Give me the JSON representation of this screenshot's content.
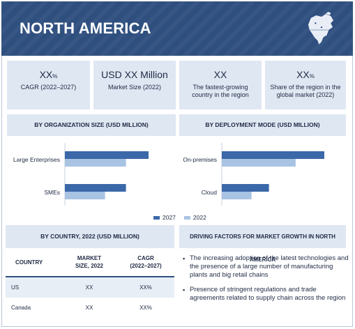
{
  "header": {
    "title": "NORTH AMERICA",
    "map_icon": "north-america-map-icon"
  },
  "kpis": [
    {
      "value": "XX",
      "unit": "%",
      "label": "CAGR (2022–2027)"
    },
    {
      "value": "USD XX Million",
      "unit": "",
      "label": "Market Size (2022)"
    },
    {
      "value": "XX",
      "unit": "",
      "label": "The fastest-growing country in the region"
    },
    {
      "value": "XX",
      "unit": "%",
      "label": "Share of the region in the global market (2022)"
    }
  ],
  "sections": {
    "org_size": "BY ORGANIZATION SIZE (USD MILLION)",
    "deployment": "BY DEPLOYMENT MODE (USD MILLION)",
    "country": "BY COUNTRY, 2022 (USD MILLION)",
    "drivers": "DRIVING FACTORS FOR MARKET GROWTH IN NORTH AMERICA"
  },
  "colors": {
    "series_2027": "#3b68a8",
    "series_2022": "#a9c3e3",
    "header_bg": "#2f4f7f",
    "panel_bg": "#dfe7f2"
  },
  "chart_data": [
    {
      "type": "bar",
      "orientation": "horizontal",
      "title": "BY ORGANIZATION SIZE (USD MILLION)",
      "categories": [
        "Large Enterprises",
        "SMEs"
      ],
      "series": [
        {
          "name": "2027",
          "values": [
            100,
            73
          ]
        },
        {
          "name": "2022",
          "values": [
            73,
            48
          ]
        }
      ],
      "xlim": [
        0,
        100
      ],
      "values_note": "relative bar lengths, no axis scale printed",
      "grid": false
    },
    {
      "type": "bar",
      "orientation": "horizontal",
      "title": "BY DEPLOYMENT MODE (USD MILLION)",
      "categories": [
        "On-premises",
        "Cloud"
      ],
      "series": [
        {
          "name": "2027",
          "values": [
            100,
            46
          ]
        },
        {
          "name": "2022",
          "values": [
            72,
            29
          ]
        }
      ],
      "xlim": [
        0,
        100
      ],
      "grid": false
    }
  ],
  "legend": [
    {
      "name": "2027",
      "color": "#3b68a8"
    },
    {
      "name": "2022",
      "color": "#a9c3e3"
    }
  ],
  "table": {
    "headers": [
      "COUNTRY",
      "MARKET SIZE, 2022",
      "CAGR (2022–2027)"
    ],
    "rows": [
      {
        "country": "US",
        "size": "XX",
        "cagr": "XX%"
      },
      {
        "country": "Canada",
        "size": "XX",
        "cagr": "XX%"
      }
    ]
  },
  "drivers": [
    "The increasing adoption of the latest technologies and the presence of a large number of manufacturing plants and big retail chains",
    "Presence of stringent regulations and trade agreements related to supply chain across the region"
  ]
}
